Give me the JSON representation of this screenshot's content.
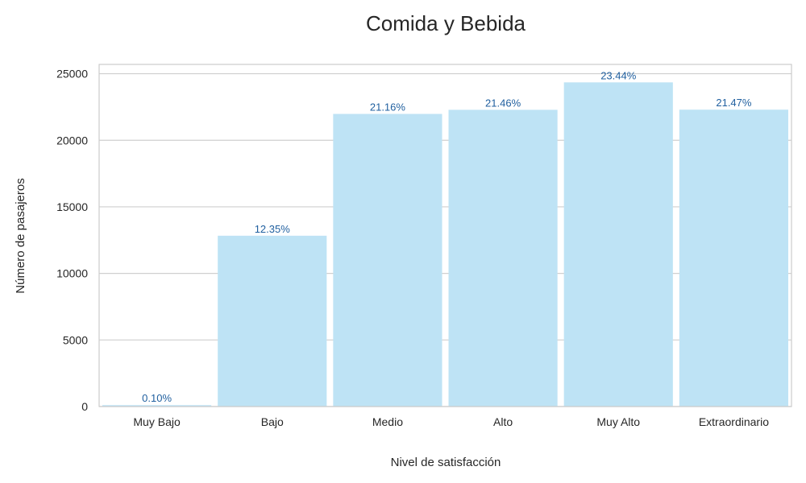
{
  "chart_data": {
    "type": "bar",
    "title": "Comida y Bebida",
    "xlabel": "Nivel de satisfacción",
    "ylabel": "Número de pasajeros",
    "categories": [
      "Muy Bajo",
      "Bajo",
      "Medio",
      "Alto",
      "Muy Alto",
      "Extraordinario"
    ],
    "values": [
      107,
      12830,
      21980,
      22290,
      24350,
      22300
    ],
    "data_labels": [
      "0.10%",
      "12.35%",
      "21.16%",
      "21.46%",
      "23.44%",
      "21.47%"
    ],
    "ylim": [
      0,
      25700
    ],
    "yticks": [
      0,
      5000,
      10000,
      15000,
      20000,
      25000
    ],
    "ytick_labels": [
      "0",
      "5000",
      "10000",
      "15000",
      "20000",
      "25000"
    ],
    "grid": true,
    "colors": {
      "bar": "#bee3f5",
      "label": "#1f5f9f",
      "grid": "#cfcfcf",
      "spine": "#cccccc"
    }
  }
}
